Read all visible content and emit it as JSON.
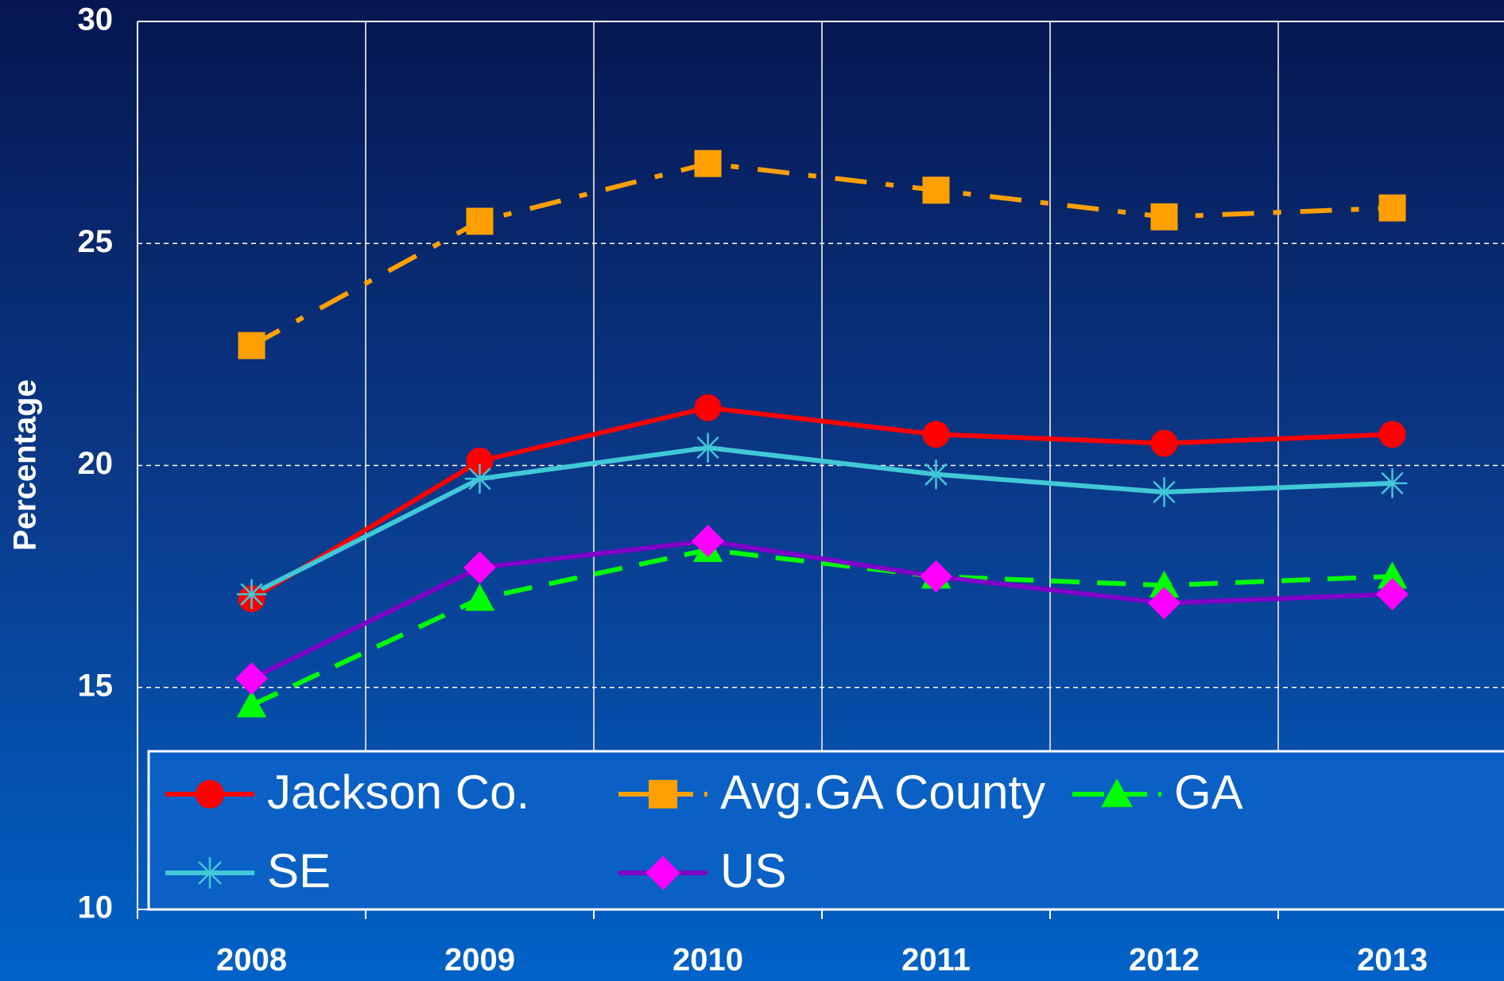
{
  "chart_data": {
    "type": "line",
    "ylabel": "Percentage",
    "categories": [
      "2008",
      "2009",
      "2010",
      "2011",
      "2012",
      "2013"
    ],
    "series": [
      {
        "name": "Jackson Co.",
        "color": "#ff0000",
        "marker": "circle",
        "dash": "solid",
        "values": [
          17.0,
          20.1,
          21.3,
          20.7,
          20.5,
          20.7
        ]
      },
      {
        "name": "Avg.GA County",
        "color": "#ffa000",
        "marker": "square",
        "dash": "dashdot",
        "values": [
          22.7,
          25.5,
          26.8,
          26.2,
          25.6,
          25.8
        ]
      },
      {
        "name": "GA",
        "color": "#00ff00",
        "marker": "triangle",
        "dash": "dashed",
        "values": [
          14.6,
          17.0,
          18.1,
          17.5,
          17.3,
          17.5
        ]
      },
      {
        "name": "SE",
        "color": "#40c8d8",
        "marker": "star",
        "dash": "solid",
        "values": [
          17.1,
          19.7,
          20.4,
          19.8,
          19.4,
          19.6
        ]
      },
      {
        "name": "US",
        "color": "#8000c8",
        "marker": "diamond",
        "marker_color": "#ff00ff",
        "dash": "solid",
        "values": [
          15.2,
          17.7,
          18.3,
          17.5,
          16.9,
          17.1
        ]
      }
    ],
    "ylim": [
      10,
      30
    ],
    "yticks": [
      10,
      15,
      20,
      25,
      30
    ],
    "grid": true,
    "legend": "bottom"
  }
}
